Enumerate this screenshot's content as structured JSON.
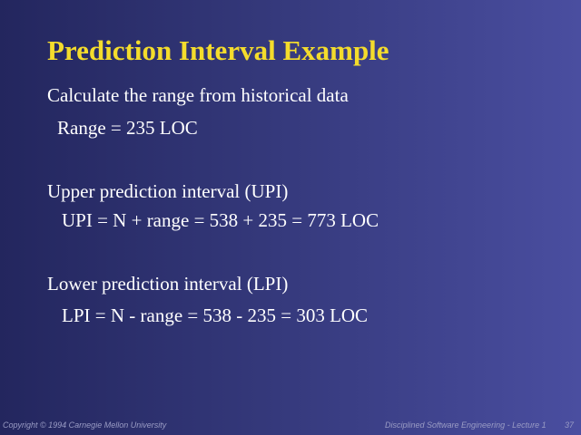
{
  "slide": {
    "title": "Prediction Interval Example",
    "lines": [
      "Calculate the range from historical data",
      "Range = 235 LOC",
      "Upper prediction interval (UPI)",
      "UPI = N + range = 538 + 235 = 773 LOC",
      "Lower prediction interval (LPI)",
      "LPI = N - range = 538 - 235 = 303 LOC"
    ],
    "footer": {
      "copyright": "Copyright © 1994 Carnegie Mellon University",
      "course": "Disciplined Software Engineering - Lecture 1",
      "page": "37"
    }
  }
}
